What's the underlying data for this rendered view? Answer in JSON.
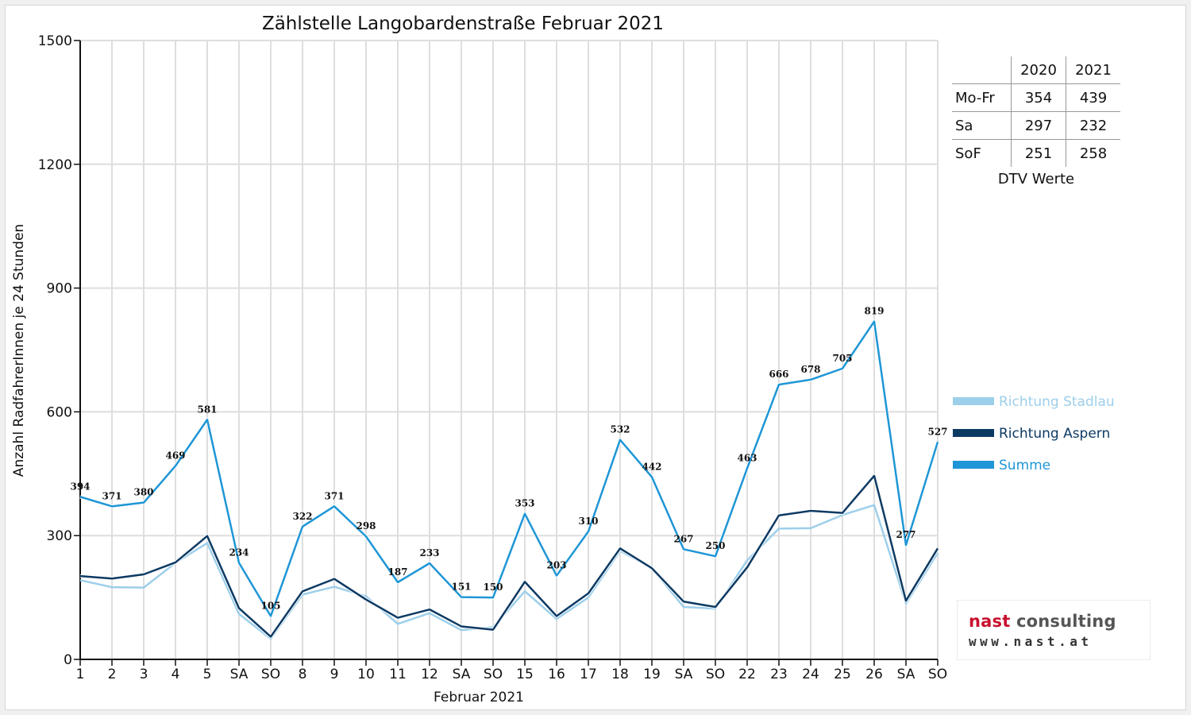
{
  "chart_data": {
    "type": "line",
    "title": "Zählstelle Langobardenstraße Februar 2021",
    "xlabel": "Februar 2021",
    "ylabel": "Anzahl RadfahrerInnen je 24 Stunden",
    "ylim": [
      0,
      1500
    ],
    "yticks": [
      "0",
      "300",
      "600",
      "900",
      "1200",
      "1500"
    ],
    "grid": true,
    "legend_position": "right",
    "categories": [
      "1",
      "2",
      "3",
      "4",
      "5",
      "SA",
      "SO",
      "8",
      "9",
      "10",
      "11",
      "12",
      "SA",
      "SO",
      "15",
      "16",
      "17",
      "18",
      "19",
      "SA",
      "SO",
      "22",
      "23",
      "24",
      "25",
      "26",
      "SA",
      "SO"
    ],
    "series": [
      {
        "name": "Richtung Stadlau",
        "color": "#9dcfea",
        "values": [
          192,
          175,
          174,
          234,
          282,
          110,
          50,
          157,
          176,
          153,
          86,
          112,
          71,
          78,
          165,
          98,
          150,
          263,
          221,
          127,
          123,
          240,
          317,
          318,
          350,
          374,
          135,
          258
        ]
      },
      {
        "name": "Richtung Aspern",
        "color": "#0d3a63",
        "values": [
          202,
          196,
          206,
          235,
          299,
          124,
          55,
          165,
          195,
          145,
          101,
          121,
          80,
          72,
          188,
          105,
          160,
          269,
          221,
          140,
          127,
          223,
          349,
          360,
          355,
          445,
          142,
          269
        ]
      },
      {
        "name": "Summe",
        "color": "#1f96d6",
        "values": [
          394,
          371,
          380,
          469,
          581,
          234,
          105,
          322,
          371,
          298,
          187,
          233,
          151,
          150,
          353,
          203,
          310,
          532,
          442,
          267,
          250,
          463,
          666,
          678,
          705,
          819,
          277,
          527
        ]
      }
    ],
    "data_labels": [
      "394",
      "371",
      "380",
      "469",
      "581",
      "234",
      "105",
      "322",
      "371",
      "298",
      "187",
      "233",
      "151",
      "150",
      "353",
      "203",
      "310",
      "532",
      "442",
      "267",
      "250",
      "463",
      "666",
      "678",
      "705",
      "819",
      "277",
      "527"
    ],
    "sunday_color": "#ff0000"
  },
  "dtv_table": {
    "headers": [
      "2020",
      "2021"
    ],
    "rows": [
      {
        "label": "Mo-Fr",
        "v2020": "354",
        "v2021": "439"
      },
      {
        "label": "Sa",
        "v2020": "297",
        "v2021": "232"
      },
      {
        "label": "SoF",
        "v2020": "251",
        "v2021": "258"
      }
    ],
    "caption": "DTV Werte"
  },
  "logo": {
    "name_part1": "nast",
    "name_part2": " consulting",
    "url": "www.nast.at",
    "color_primary": "#c8102e",
    "color_secondary": "#555555"
  }
}
